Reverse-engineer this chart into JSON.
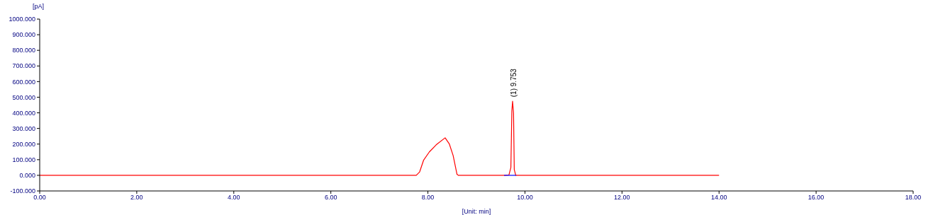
{
  "chart_data": {
    "type": "line",
    "xlabel": "[Unit: min]",
    "ylabel": "[pA]",
    "series": [
      {
        "color": "#ff0000",
        "x": [
          0,
          7.76,
          7.83,
          7.91,
          8.03,
          8.17,
          8.355,
          8.44,
          8.52,
          8.6,
          8.63,
          9.57,
          9.67,
          9.71,
          9.73,
          9.745,
          9.765,
          9.78,
          9.81,
          14
        ],
        "values": [
          0,
          0,
          22,
          96,
          150,
          195,
          240,
          202,
          127,
          6,
          0,
          0,
          2,
          50,
          413,
          474,
          398,
          36,
          0,
          0
        ]
      },
      {
        "color": "#0000ff",
        "x": [
          9.57,
          9.82
        ],
        "values": [
          0,
          0
        ]
      }
    ],
    "annotations": [
      {
        "text": "(1) 9.753",
        "x": 9.753,
        "y": 474
      }
    ],
    "xlim": [
      0,
      18
    ],
    "xticks": [
      {
        "value": 0,
        "label": "0.00"
      },
      {
        "value": 2,
        "label": "2.00"
      },
      {
        "value": 4,
        "label": "4.00"
      },
      {
        "value": 6,
        "label": "6.00"
      },
      {
        "value": 8,
        "label": "8.00"
      },
      {
        "value": 10,
        "label": "10.00"
      },
      {
        "value": 12,
        "label": "12.00"
      },
      {
        "value": 14,
        "label": "14.00"
      },
      {
        "value": 16,
        "label": "16.00"
      },
      {
        "value": 18,
        "label": "18.00"
      }
    ],
    "ylim": [
      -100,
      1000
    ],
    "yticks": [
      {
        "value": -100,
        "label": "-100.000"
      },
      {
        "value": 0,
        "label": "0.000"
      },
      {
        "value": 100,
        "label": "100.000"
      },
      {
        "value": 200,
        "label": "200.000"
      },
      {
        "value": 300,
        "label": "300.000"
      },
      {
        "value": 400,
        "label": "400.000"
      },
      {
        "value": 500,
        "label": "500.000"
      },
      {
        "value": 600,
        "label": "600.000"
      },
      {
        "value": 700,
        "label": "700.000"
      },
      {
        "value": 800,
        "label": "800.000"
      },
      {
        "value": 900,
        "label": "900.000"
      },
      {
        "value": 1000,
        "label": "1000.000"
      }
    ],
    "grid": false,
    "legend": false,
    "marker": "none",
    "line_style": "solid"
  }
}
